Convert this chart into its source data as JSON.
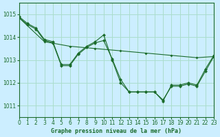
{
  "title": "Graphe pression niveau de la mer (hPa)",
  "background_color": "#cceeff",
  "grid_color": "#aaddcc",
  "line_color": "#1a6b2a",
  "xlim": [
    0,
    23
  ],
  "ylim": [
    1010.5,
    1015.5
  ],
  "yticks": [
    1011,
    1012,
    1013,
    1014,
    1015
  ],
  "xticks": [
    0,
    1,
    2,
    3,
    4,
    5,
    6,
    7,
    8,
    9,
    10,
    11,
    12,
    13,
    14,
    15,
    16,
    17,
    18,
    19,
    20,
    21,
    22,
    23
  ],
  "series": [
    {
      "x": [
        0,
        1,
        2,
        3,
        4,
        5,
        6,
        7,
        8,
        9,
        10,
        11,
        12,
        13,
        14,
        15,
        16,
        17,
        18,
        19,
        20,
        21,
        22,
        23
      ],
      "y": [
        1014.9,
        1014.6,
        1014.4,
        1013.9,
        1013.8,
        1012.8,
        1012.8,
        1013.3,
        1013.6,
        1013.8,
        1014.1,
        1013.0,
        1012.0,
        1011.6,
        1011.6,
        1011.6,
        1011.6,
        1011.2,
        1011.9,
        1011.9,
        1012.0,
        1011.9,
        1012.6,
        1013.2
      ]
    },
    {
      "x": [
        0,
        1,
        2,
        3,
        4,
        5,
        6,
        7,
        8,
        9,
        10,
        11,
        12,
        13,
        14,
        15,
        16,
        17,
        18,
        19,
        20,
        21,
        22,
        23
      ],
      "y": [
        1014.85,
        1014.55,
        1014.35,
        1013.85,
        1013.75,
        1012.75,
        1012.75,
        1013.25,
        1013.55,
        1013.75,
        1013.85,
        1013.05,
        1012.15,
        1011.6,
        1011.6,
        1011.6,
        1011.6,
        1011.25,
        1011.85,
        1011.85,
        1011.95,
        1011.85,
        1012.5,
        1013.15
      ]
    },
    {
      "x": [
        0,
        3,
        6,
        9,
        12,
        15,
        18,
        21,
        23
      ],
      "y": [
        1014.85,
        1013.8,
        1013.6,
        1013.5,
        1013.4,
        1013.3,
        1013.2,
        1013.1,
        1013.15
      ]
    }
  ]
}
